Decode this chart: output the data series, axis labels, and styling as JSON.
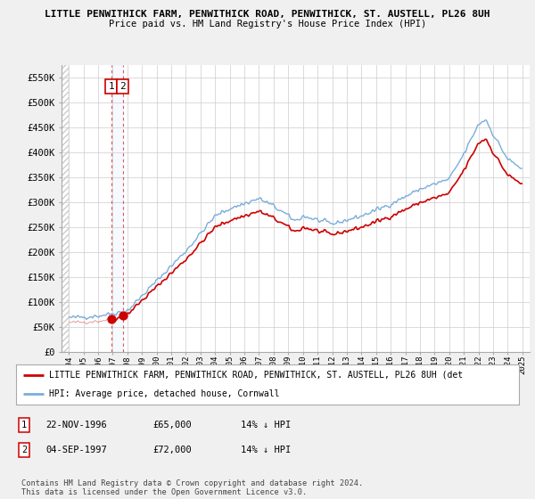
{
  "title1": "LITTLE PENWITHICK FARM, PENWITHICK ROAD, PENWITHICK, ST. AUSTELL, PL26 8UH",
  "title2": "Price paid vs. HM Land Registry's House Price Index (HPI)",
  "legend_line1": "LITTLE PENWITHICK FARM, PENWITHICK ROAD, PENWITHICK, ST. AUSTELL, PL26 8UH (det",
  "legend_line2": "HPI: Average price, detached house, Cornwall",
  "table_row1": [
    "1",
    "22-NOV-1996",
    "£65,000",
    "14% ↓ HPI"
  ],
  "table_row2": [
    "2",
    "04-SEP-1997",
    "£72,000",
    "14% ↓ HPI"
  ],
  "footnote": "Contains HM Land Registry data © Crown copyright and database right 2024.\nThis data is licensed under the Open Government Licence v3.0.",
  "hpi_color": "#7aaddb",
  "price_color": "#cc0000",
  "dot_color": "#cc0000",
  "vline_color": "#dd4444",
  "shade_color": "#ddeeff",
  "ylim": [
    0,
    575000
  ],
  "yticks": [
    0,
    50000,
    100000,
    150000,
    200000,
    250000,
    300000,
    350000,
    400000,
    450000,
    500000,
    550000
  ],
  "ytick_labels": [
    "£0",
    "£50K",
    "£100K",
    "£150K",
    "£200K",
    "£250K",
    "£300K",
    "£350K",
    "£400K",
    "£450K",
    "£500K",
    "£550K"
  ],
  "background_color": "#f0f0f0",
  "plot_bg_color": "#ffffff",
  "grid_color": "#cccccc",
  "purchase_date1": 1996.896,
  "purchase_date2": 1997.676,
  "purchase_price1": 65000,
  "purchase_price2": 72000
}
